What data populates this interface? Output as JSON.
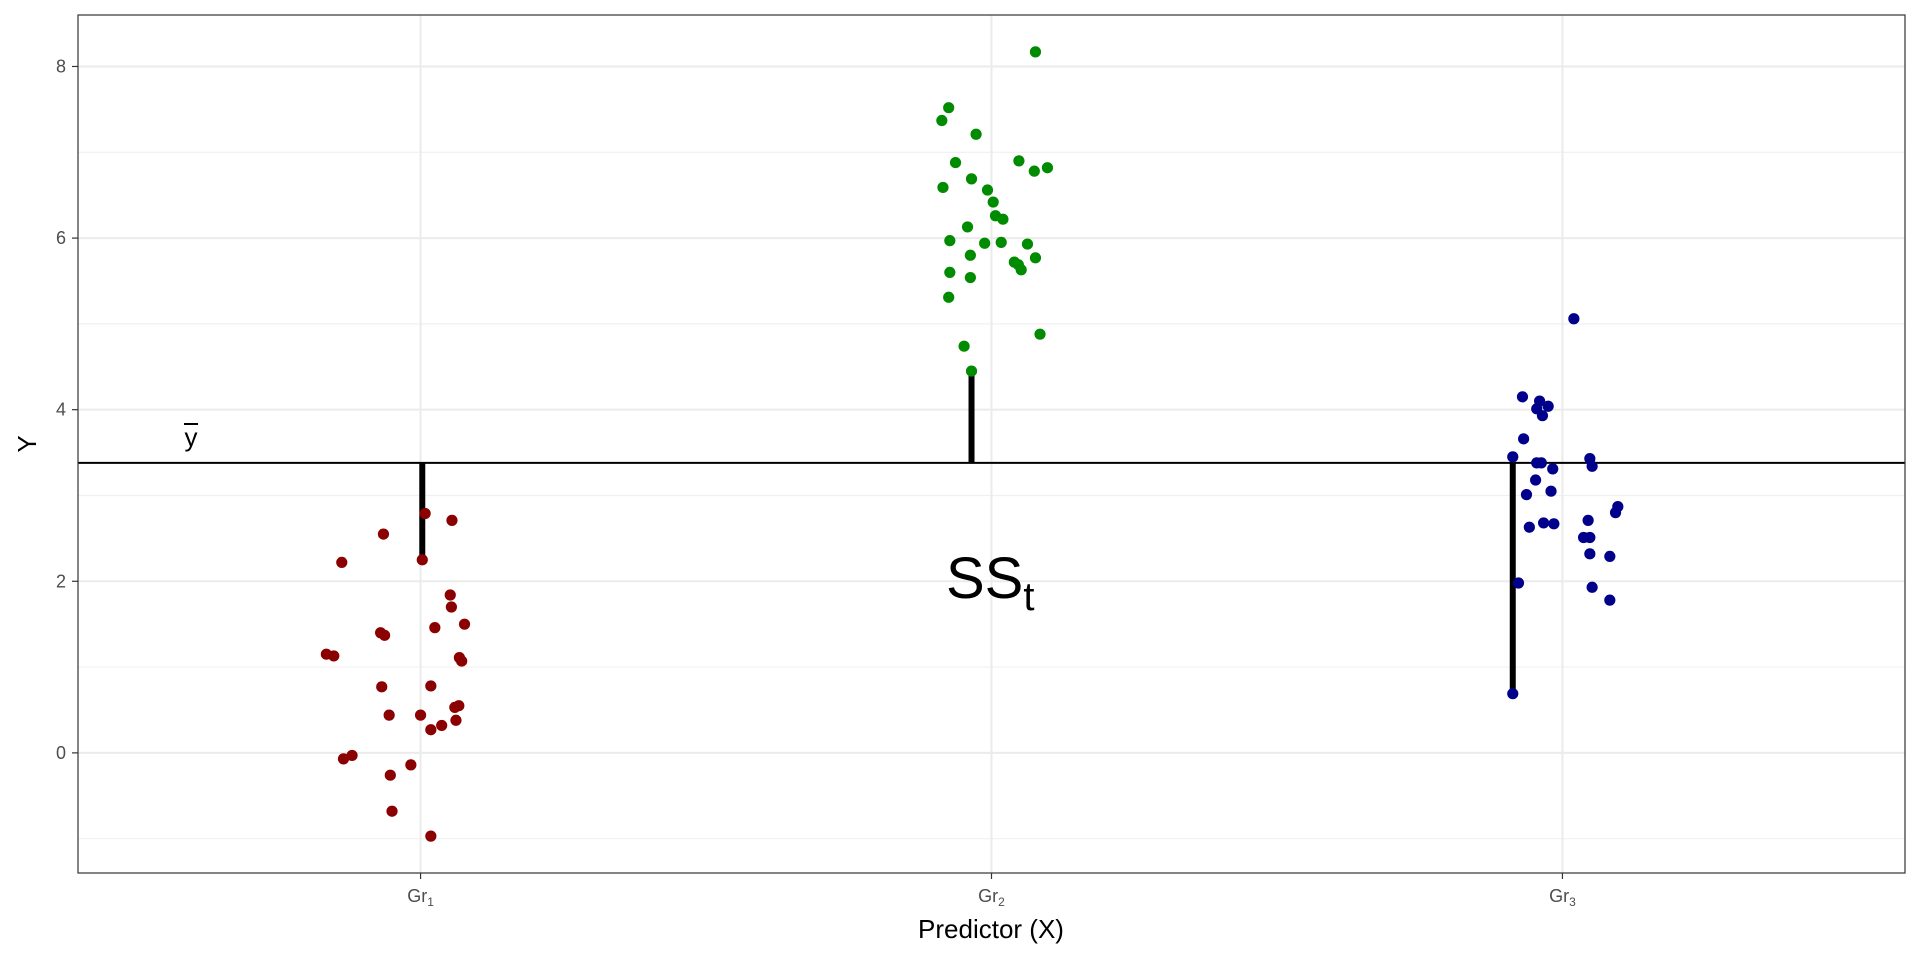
{
  "chart_data": {
    "type": "scatter",
    "xlabel": "Predictor (X)",
    "ylabel": "Y",
    "ylim": [
      -1.4,
      8.6
    ],
    "yticks": [
      0,
      2,
      4,
      6,
      8
    ],
    "grid": true,
    "categories": [
      {
        "name": "Gr",
        "sub": "1"
      },
      {
        "name": "Gr",
        "sub": "2"
      },
      {
        "name": "Gr",
        "sub": "3"
      }
    ],
    "grand_mean": {
      "value": 3.38,
      "label": "y"
    },
    "annotation": {
      "main": "SS",
      "sub": "t"
    },
    "colors": [
      "#8b0000",
      "#008b00",
      "#00008b"
    ],
    "series": [
      {
        "points": [
          {
            "x": 1.008,
            "y": 2.79
          },
          {
            "x": 1.055,
            "y": 2.71
          },
          {
            "x": 0.935,
            "y": 2.55
          },
          {
            "x": 1.003,
            "y": 2.25
          },
          {
            "x": 0.862,
            "y": 2.22
          },
          {
            "x": 1.052,
            "y": 1.84
          },
          {
            "x": 1.054,
            "y": 1.7
          },
          {
            "x": 1.077,
            "y": 1.5
          },
          {
            "x": 1.025,
            "y": 1.46
          },
          {
            "x": 0.93,
            "y": 1.4
          },
          {
            "x": 0.937,
            "y": 1.37
          },
          {
            "x": 0.835,
            "y": 1.15
          },
          {
            "x": 0.848,
            "y": 1.13
          },
          {
            "x": 1.068,
            "y": 1.11
          },
          {
            "x": 1.072,
            "y": 1.07
          },
          {
            "x": 0.932,
            "y": 0.77
          },
          {
            "x": 1.018,
            "y": 0.78
          },
          {
            "x": 1.067,
            "y": 0.55
          },
          {
            "x": 1.06,
            "y": 0.53
          },
          {
            "x": 0.945,
            "y": 0.44
          },
          {
            "x": 1.0,
            "y": 0.44
          },
          {
            "x": 1.062,
            "y": 0.38
          },
          {
            "x": 1.037,
            "y": 0.32
          },
          {
            "x": 1.018,
            "y": 0.27
          },
          {
            "x": 0.865,
            "y": -0.07
          },
          {
            "x": 0.88,
            "y": -0.03
          },
          {
            "x": 0.983,
            "y": -0.14
          },
          {
            "x": 0.947,
            "y": -0.26
          },
          {
            "x": 0.95,
            "y": -0.68
          },
          {
            "x": 1.018,
            "y": -0.97
          }
        ]
      },
      {
        "points": [
          {
            "x": 2.077,
            "y": 8.17
          },
          {
            "x": 1.925,
            "y": 7.52
          },
          {
            "x": 1.913,
            "y": 7.37
          },
          {
            "x": 1.973,
            "y": 7.21
          },
          {
            "x": 1.937,
            "y": 6.88
          },
          {
            "x": 2.048,
            "y": 6.9
          },
          {
            "x": 2.098,
            "y": 6.82
          },
          {
            "x": 2.075,
            "y": 6.78
          },
          {
            "x": 1.965,
            "y": 6.69
          },
          {
            "x": 1.915,
            "y": 6.59
          },
          {
            "x": 1.993,
            "y": 6.56
          },
          {
            "x": 2.003,
            "y": 6.42
          },
          {
            "x": 2.007,
            "y": 6.26
          },
          {
            "x": 2.02,
            "y": 6.22
          },
          {
            "x": 1.958,
            "y": 6.13
          },
          {
            "x": 1.927,
            "y": 5.97
          },
          {
            "x": 1.988,
            "y": 5.94
          },
          {
            "x": 2.017,
            "y": 5.95
          },
          {
            "x": 2.063,
            "y": 5.93
          },
          {
            "x": 1.963,
            "y": 5.8
          },
          {
            "x": 2.077,
            "y": 5.77
          },
          {
            "x": 2.04,
            "y": 5.72
          },
          {
            "x": 2.047,
            "y": 5.69
          },
          {
            "x": 2.052,
            "y": 5.63
          },
          {
            "x": 1.927,
            "y": 5.6
          },
          {
            "x": 1.963,
            "y": 5.54
          },
          {
            "x": 1.925,
            "y": 5.31
          },
          {
            "x": 2.085,
            "y": 4.88
          },
          {
            "x": 1.952,
            "y": 4.74
          },
          {
            "x": 1.965,
            "y": 4.45
          }
        ]
      },
      {
        "points": [
          {
            "x": 3.02,
            "y": 5.06
          },
          {
            "x": 2.93,
            "y": 4.15
          },
          {
            "x": 2.96,
            "y": 4.1
          },
          {
            "x": 2.975,
            "y": 4.04
          },
          {
            "x": 2.955,
            "y": 4.01
          },
          {
            "x": 2.965,
            "y": 3.93
          },
          {
            "x": 2.932,
            "y": 3.66
          },
          {
            "x": 2.913,
            "y": 3.45
          },
          {
            "x": 3.048,
            "y": 3.43
          },
          {
            "x": 2.955,
            "y": 3.38
          },
          {
            "x": 2.963,
            "y": 3.38
          },
          {
            "x": 3.052,
            "y": 3.34
          },
          {
            "x": 2.983,
            "y": 3.31
          },
          {
            "x": 2.953,
            "y": 3.18
          },
          {
            "x": 2.98,
            "y": 3.05
          },
          {
            "x": 2.937,
            "y": 3.01
          },
          {
            "x": 3.097,
            "y": 2.87
          },
          {
            "x": 3.093,
            "y": 2.8
          },
          {
            "x": 3.045,
            "y": 2.71
          },
          {
            "x": 2.967,
            "y": 2.68
          },
          {
            "x": 2.985,
            "y": 2.67
          },
          {
            "x": 2.942,
            "y": 2.63
          },
          {
            "x": 3.037,
            "y": 2.51
          },
          {
            "x": 3.048,
            "y": 2.51
          },
          {
            "x": 3.048,
            "y": 2.32
          },
          {
            "x": 3.083,
            "y": 2.29
          },
          {
            "x": 2.923,
            "y": 1.98
          },
          {
            "x": 3.052,
            "y": 1.93
          },
          {
            "x": 3.083,
            "y": 1.78
          },
          {
            "x": 2.913,
            "y": 0.69
          }
        ]
      }
    ],
    "deviation_segments": [
      {
        "x": 1.003,
        "y": 2.25
      },
      {
        "x": 1.965,
        "y": 4.45
      },
      {
        "x": 2.913,
        "y": 0.69
      }
    ]
  }
}
